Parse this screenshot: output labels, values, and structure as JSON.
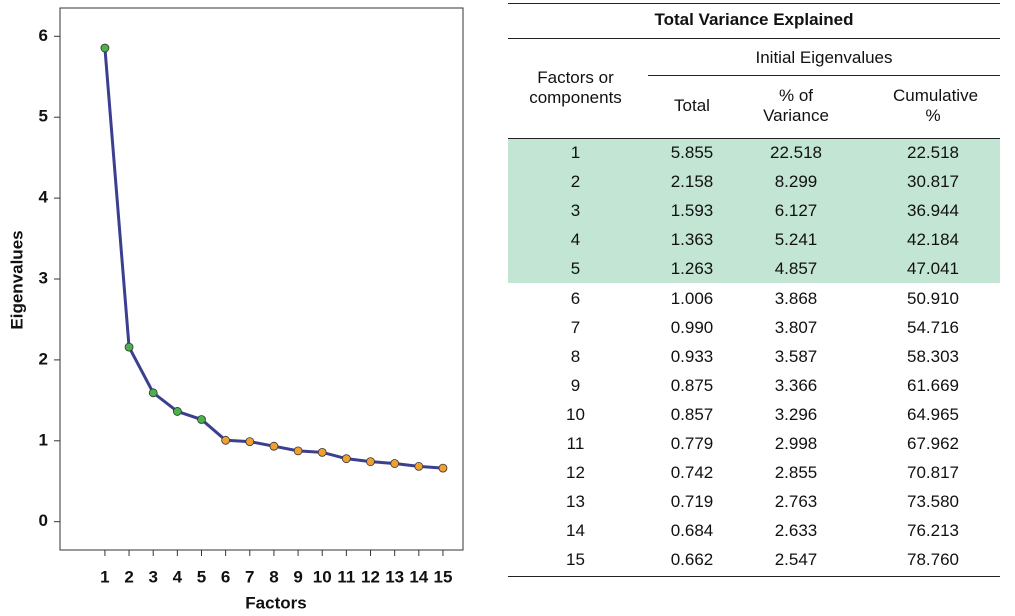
{
  "chart_data": {
    "type": "line",
    "x_label": "Factors",
    "y_label": "Eigenvalues",
    "x": [
      1,
      2,
      3,
      4,
      5,
      6,
      7,
      8,
      9,
      10,
      11,
      12,
      13,
      14,
      15
    ],
    "values": [
      5.855,
      2.158,
      1.593,
      1.363,
      1.263,
      1.006,
      0.99,
      0.933,
      0.875,
      0.857,
      0.779,
      0.742,
      0.719,
      0.684,
      0.662
    ],
    "color": "#3a3f8f",
    "point_colors": [
      "#4cb04c",
      "#4cb04c",
      "#4cb04c",
      "#4cb04c",
      "#4cb04c",
      "#f0a030",
      "#f0a030",
      "#f0a030",
      "#f0a030",
      "#f0a030",
      "#f0a030",
      "#f0a030",
      "#f0a030",
      "#f0a030",
      "#f0a030"
    ],
    "xlim": [
      -0.86,
      15.83
    ],
    "xticks": [
      1,
      2,
      3,
      4,
      5,
      6,
      7,
      8,
      9,
      10,
      11,
      12,
      13,
      14,
      15
    ],
    "ylim": [
      -0.35,
      6.35
    ],
    "yticks": [
      0,
      1,
      2,
      3,
      4,
      5,
      6
    ]
  },
  "table": {
    "title": "Total Variance Explained",
    "header": {
      "factors": "Factors or components",
      "group": "Initial Eigenvalues",
      "columns": [
        "Total",
        "% of Variance",
        "Cumulative %"
      ]
    },
    "rows": [
      [
        "1",
        "5.855",
        "22.518",
        "22.518"
      ],
      [
        "2",
        "2.158",
        "8.299",
        "30.817"
      ],
      [
        "3",
        "1.593",
        "6.127",
        "36.944"
      ],
      [
        "4",
        "1.363",
        "5.241",
        "42.184"
      ],
      [
        "5",
        "1.263",
        "4.857",
        "47.041"
      ],
      [
        "6",
        "1.006",
        "3.868",
        "50.910"
      ],
      [
        "7",
        "0.990",
        "3.807",
        "54.716"
      ],
      [
        "8",
        "0.933",
        "3.587",
        "58.303"
      ],
      [
        "9",
        "0.875",
        "3.366",
        "61.669"
      ],
      [
        "10",
        "0.857",
        "3.296",
        "64.965"
      ],
      [
        "11",
        "0.779",
        "2.998",
        "67.962"
      ],
      [
        "12",
        "0.742",
        "2.855",
        "70.817"
      ],
      [
        "13",
        "0.719",
        "2.763",
        "73.580"
      ],
      [
        "14",
        "0.684",
        "2.633",
        "76.213"
      ],
      [
        "15",
        "0.662",
        "2.547",
        "78.760"
      ]
    ]
  }
}
